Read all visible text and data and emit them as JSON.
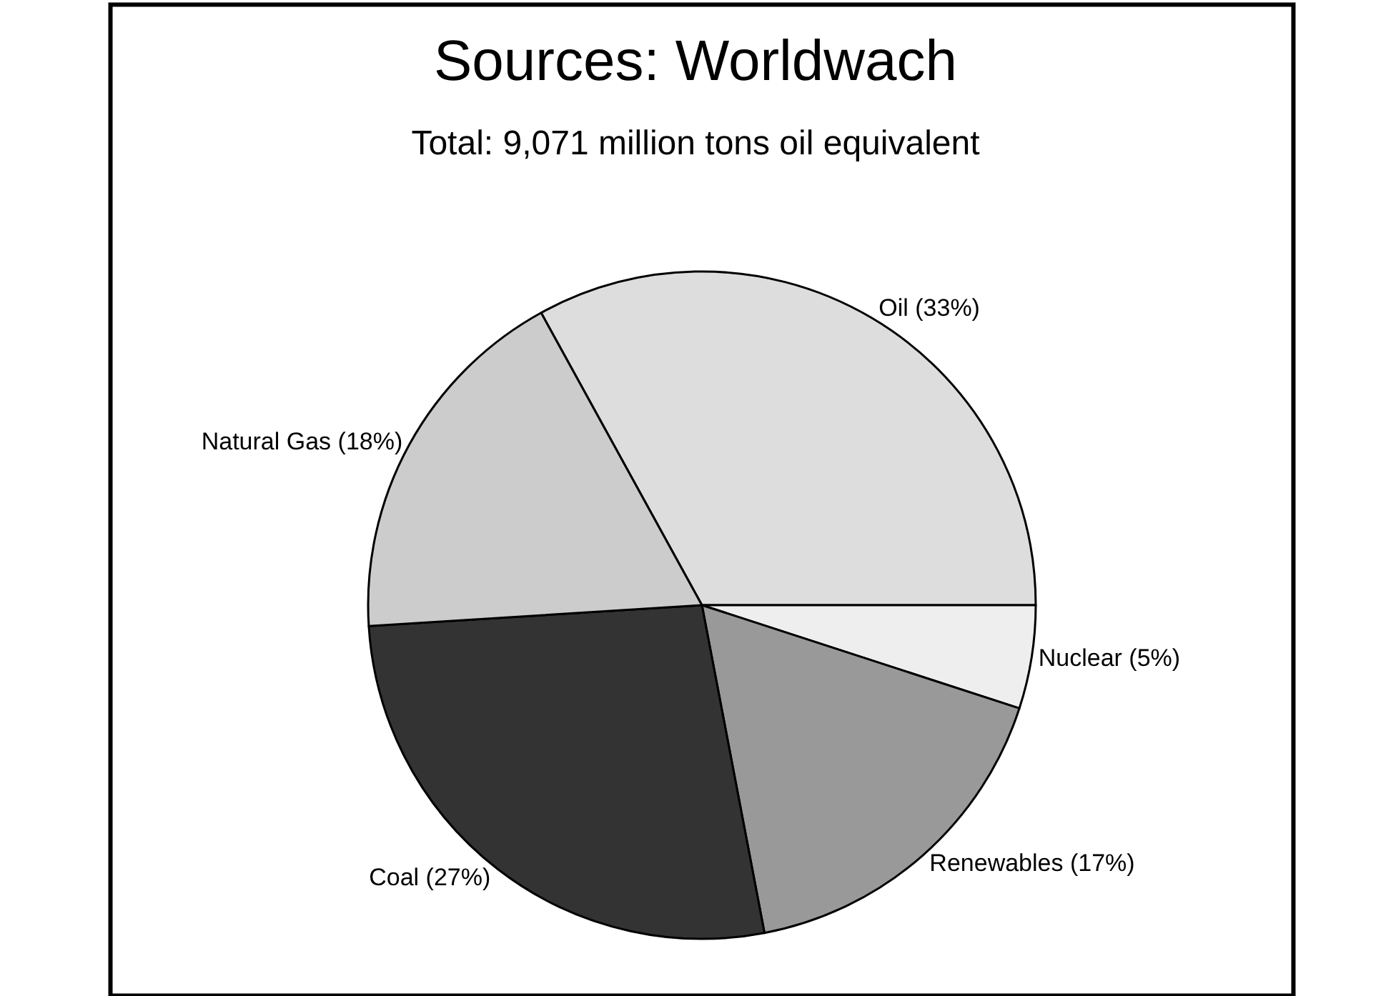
{
  "chart_data": {
    "type": "pie",
    "title": "Sources: Worldwach",
    "subtitle": "Total: 9,071 million tons oil equivalent",
    "categories": [
      "Oil (33%)",
      "Nuclear (5%)",
      "Renewables (17%)",
      "Coal (27%)",
      "Natural Gas (18%)"
    ],
    "values": [
      33,
      5,
      17,
      27,
      18
    ],
    "colors": [
      "#dddddd",
      "#eeeeee",
      "#999999",
      "#333333",
      "#cccccc"
    ],
    "legend": false
  }
}
